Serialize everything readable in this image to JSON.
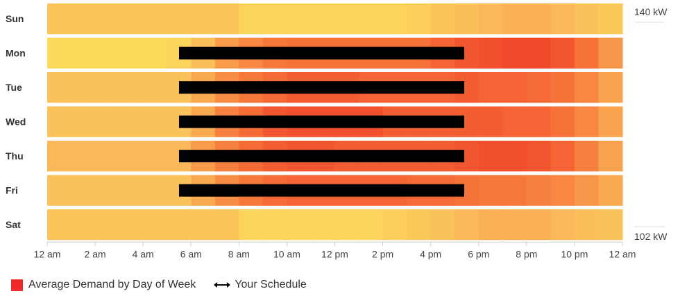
{
  "chart_data": {
    "type": "heatmap",
    "title": "",
    "xlabel": "",
    "ylabel": "",
    "rows": [
      "Sun",
      "Mon",
      "Tue",
      "Wed",
      "Thu",
      "Fri",
      "Sat"
    ],
    "x_range_hours": [
      0,
      24
    ],
    "x_ticks": [
      "12 am",
      "2 am",
      "4 am",
      "6 am",
      "8 am",
      "10 am",
      "12 pm",
      "2 pm",
      "4 pm",
      "6 pm",
      "8 pm",
      "10 pm",
      "12 am"
    ],
    "color_scale": {
      "max_label": "140 kW",
      "min_label": "102 kW",
      "max": 140,
      "min": 102,
      "unit": "kW"
    },
    "values_kw": {
      "Sun": [
        115,
        115,
        115,
        115,
        115,
        115,
        115,
        115,
        110,
        110,
        110,
        110,
        110,
        110,
        110,
        112,
        115,
        117,
        118,
        119,
        119,
        118,
        116,
        114
      ],
      "Mon": [
        108,
        108,
        108,
        108,
        108,
        110,
        117,
        122,
        125,
        127,
        128,
        128,
        128,
        128,
        128,
        128,
        130,
        132,
        133,
        134,
        134,
        132,
        128,
        123
      ],
      "Tue": [
        116,
        116,
        116,
        116,
        116,
        116,
        120,
        124,
        127,
        129,
        131,
        131,
        131,
        130,
        130,
        130,
        130,
        131,
        130,
        130,
        129,
        128,
        125,
        121
      ],
      "Wed": [
        116,
        116,
        116,
        116,
        116,
        116,
        120,
        126,
        129,
        132,
        133,
        133,
        133,
        133,
        131,
        131,
        131,
        131,
        131,
        130,
        130,
        128,
        125,
        121
      ],
      "Thu": [
        118,
        118,
        118,
        118,
        118,
        118,
        122,
        126,
        129,
        131,
        132,
        132,
        131,
        131,
        131,
        131,
        131,
        132,
        133,
        133,
        132,
        130,
        126,
        121
      ],
      "Fri": [
        116,
        116,
        116,
        116,
        116,
        116,
        120,
        124,
        127,
        129,
        130,
        130,
        130,
        130,
        130,
        129,
        129,
        128,
        127,
        127,
        126,
        125,
        123,
        120
      ],
      "Sat": [
        115,
        115,
        115,
        115,
        115,
        115,
        115,
        115,
        110,
        110,
        110,
        110,
        110,
        110,
        112,
        114,
        116,
        118,
        119,
        119,
        119,
        118,
        117,
        116
      ]
    },
    "schedule": {
      "Sun": null,
      "Mon": [
        5.5,
        17.4
      ],
      "Tue": [
        5.5,
        17.4
      ],
      "Wed": [
        5.5,
        17.4
      ],
      "Thu": [
        5.5,
        17.4
      ],
      "Fri": [
        5.5,
        17.4
      ],
      "Sat": null
    },
    "legend": [
      {
        "label": "Average Demand by Day of Week",
        "color": "#ee2a2a",
        "icon": "square-swatch-icon"
      },
      {
        "label": "Your Schedule",
        "color": "#000000",
        "icon": "double-arrow-icon"
      }
    ],
    "legend_position": "bottom-left",
    "grid": false
  }
}
